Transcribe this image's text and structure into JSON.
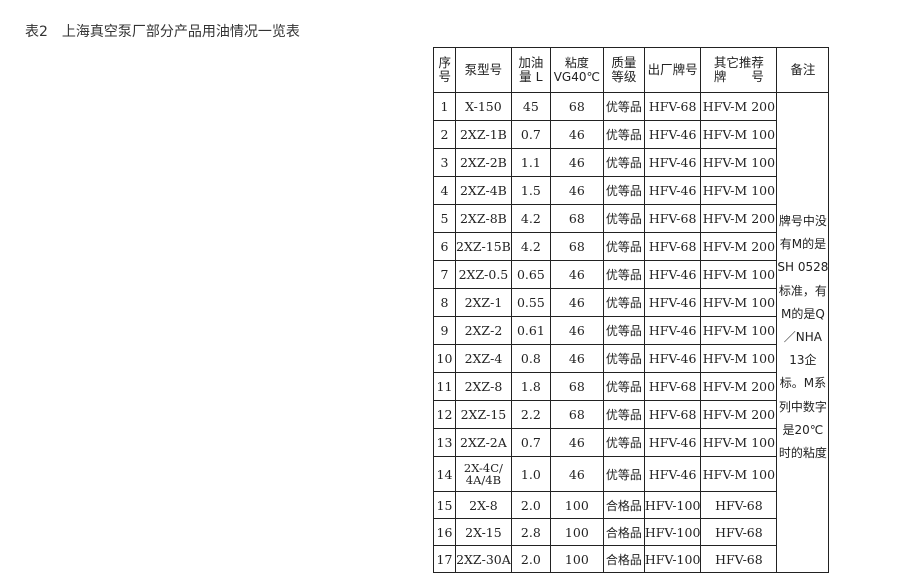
{
  "title": "表2　上海真空泵厂部分产品用油情况一览表",
  "headers": [
    "序号",
    "泵型号",
    "加油量 L",
    "粘度 VG40℃",
    "质量等级",
    "出厂牌号",
    "其它推荐 牌　　号",
    "备注"
  ],
  "rows": [
    [
      "1",
      "X-150",
      "45",
      "68",
      "优等品",
      "HFV-68",
      "HFV-M 200"
    ],
    [
      "2",
      "2XZ-1B",
      "0.7",
      "46",
      "优等品",
      "HFV-46",
      "HFV-M 100"
    ],
    [
      "3",
      "2XZ-2B",
      "1.1",
      "46",
      "优等品",
      "HFV-46",
      "HFV-M 100"
    ],
    [
      "4",
      "2XZ-4B",
      "1.5",
      "46",
      "优等品",
      "HFV-46",
      "HFV-M 100"
    ],
    [
      "5",
      "2XZ-8B",
      "4.2",
      "68",
      "优等品",
      "HFV-68",
      "HFV-M 200"
    ],
    [
      "6",
      "2XZ-15B",
      "4.2",
      "68",
      "优等品",
      "HFV-68",
      "HFV-M 200"
    ],
    [
      "7",
      "2XZ-0.5",
      "0.65",
      "46",
      "优等品",
      "HFV-46",
      "HFV-M 100"
    ],
    [
      "8",
      "2XZ-1",
      "0.55",
      "46",
      "优等品",
      "HFV-46",
      "HFV-M 100"
    ],
    [
      "9",
      "2XZ-2",
      "0.61",
      "46",
      "优等品",
      "HFV-46",
      "HFV-M 100"
    ],
    [
      "10",
      "2XZ-4",
      "0.8",
      "46",
      "优等品",
      "HFV-46",
      "HFV-M 100"
    ],
    [
      "11",
      "2XZ-8",
      "1.8",
      "68",
      "优等品",
      "HFV-68",
      "HFV-M 200"
    ],
    [
      "12",
      "2XZ-15",
      "2.2",
      "68",
      "优等品",
      "HFV-68",
      "HFV-M 200"
    ],
    [
      "13",
      "2XZ-2A",
      "0.7",
      "46",
      "优等品",
      "HFV-46",
      "HFV-M 100"
    ],
    [
      "14",
      "2X-4C/ 4A/4B",
      "1.0",
      "46",
      "优等品",
      "HFV-46",
      "HFV-M 100"
    ],
    [
      "15",
      "2X-8",
      "2.0",
      "100",
      "合格品",
      "HFV-100",
      "HFV-68"
    ],
    [
      "16",
      "2X-15",
      "2.8",
      "100",
      "合格品",
      "HFV-100",
      "HFV-68"
    ],
    [
      "17",
      "2XZ-30A",
      "2.0",
      "100",
      "合格品",
      "HFV-100",
      "HFV-68"
    ]
  ],
  "notes": "牌号中没有M的是SH 0528标准，有M的是Q／NHA 13企标。M系列中数字是20℃时的粘度"
}
